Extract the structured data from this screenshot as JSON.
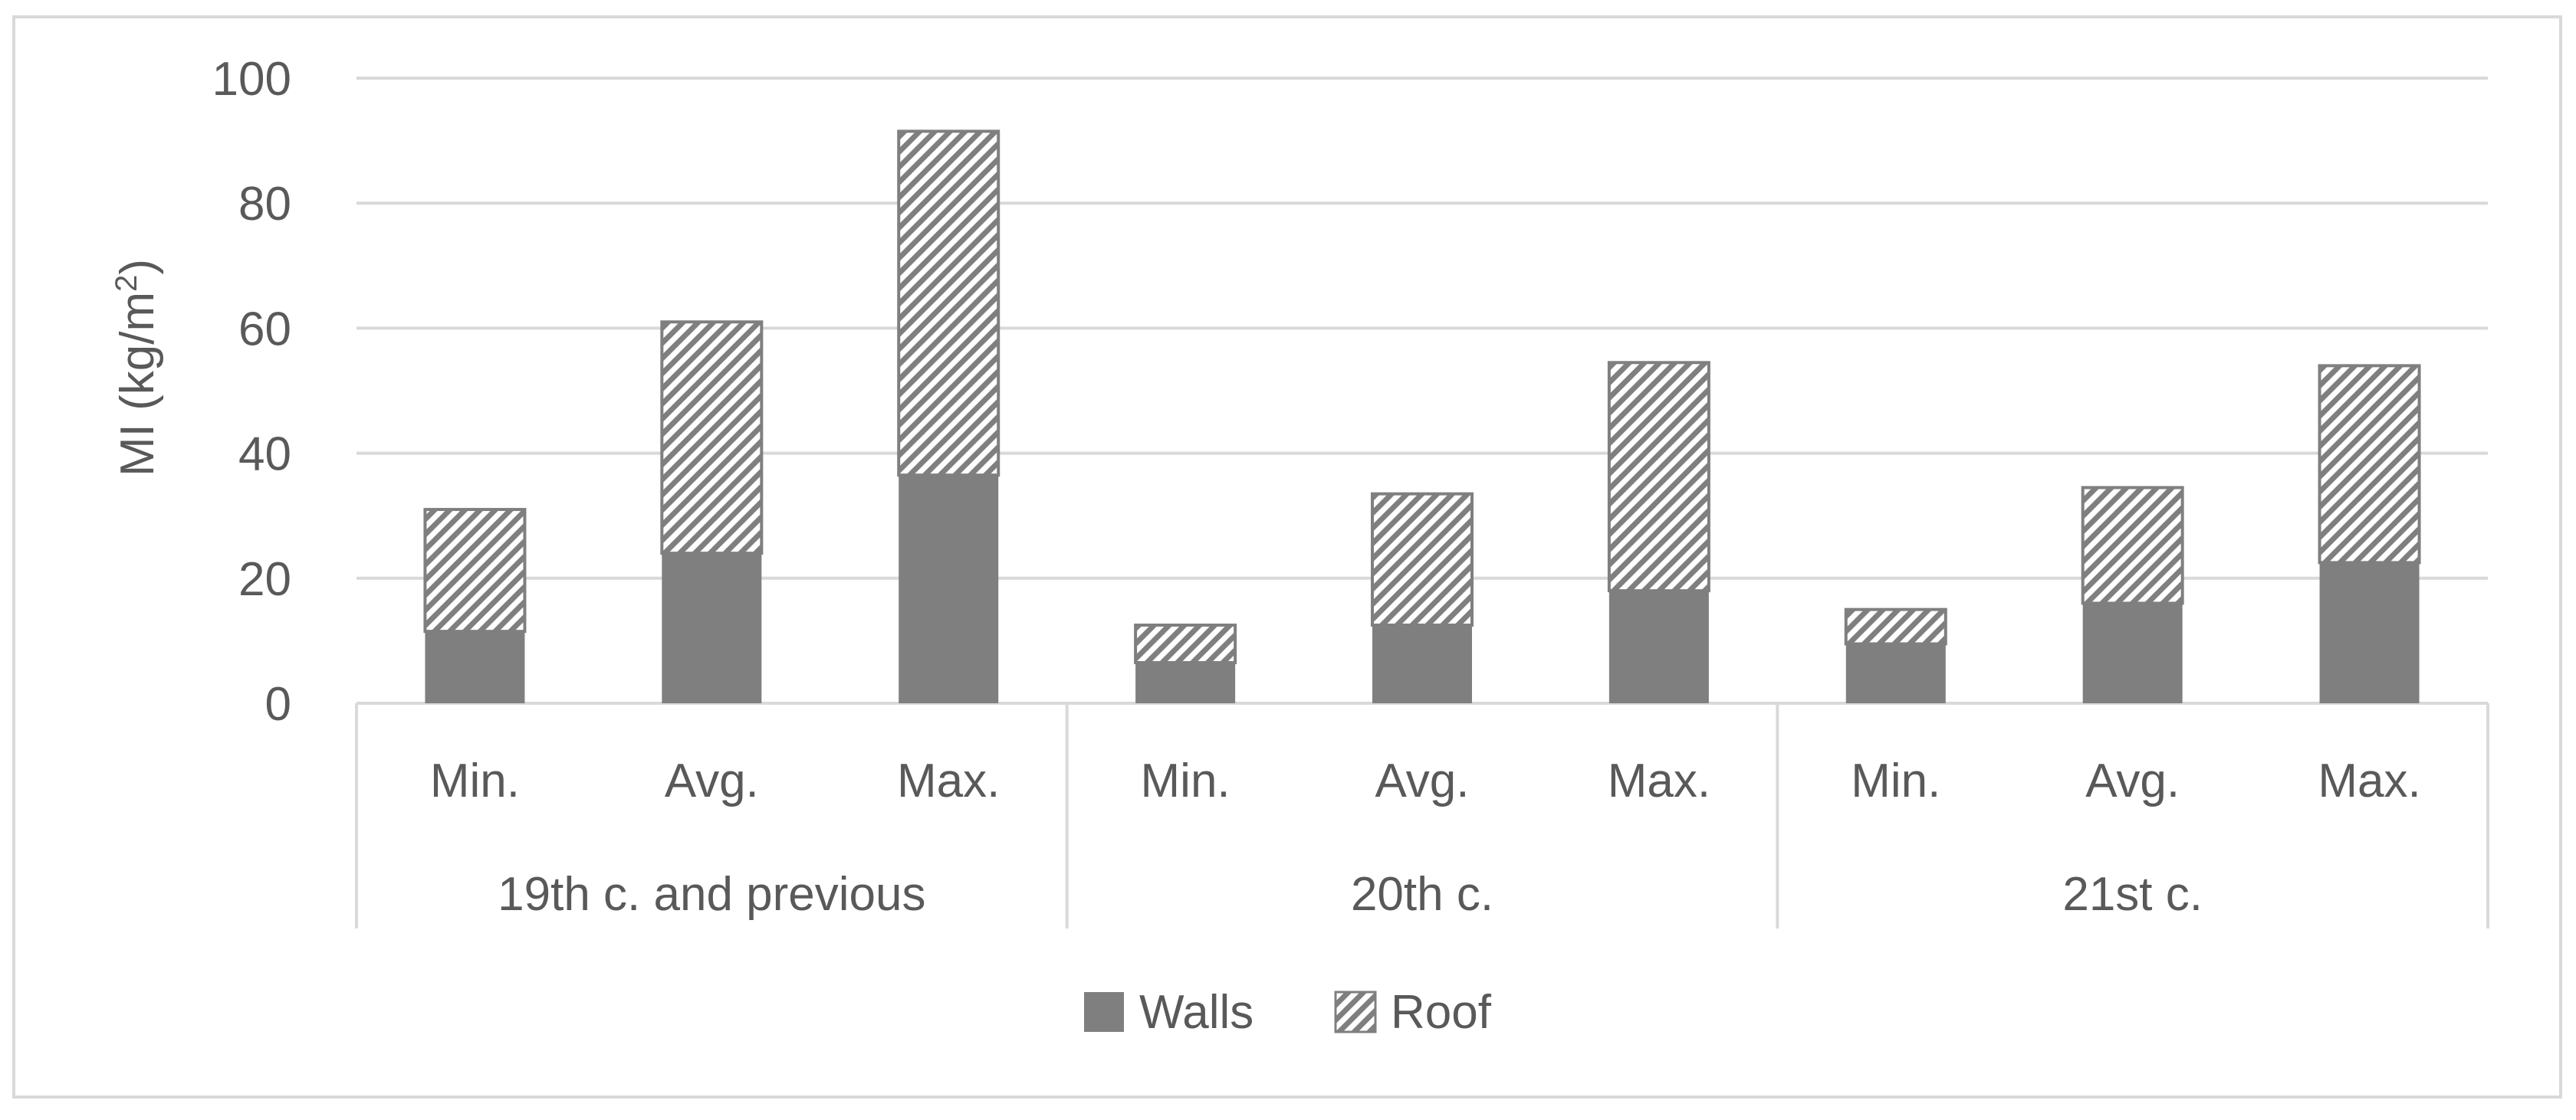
{
  "chart_data": {
    "type": "bar",
    "stacked": true,
    "title": "",
    "ylabel": "MI (kg/m",
    "ylabel_superscript": "2",
    "ylabel_suffix": ")",
    "xlabel": "",
    "ylim": [
      0,
      100
    ],
    "yticks": [
      "0",
      "20",
      "40",
      "60",
      "80",
      "100"
    ],
    "grid": true,
    "legend_position": "bottom",
    "groups": [
      {
        "label": "19th c. and previous",
        "categories": [
          "Min.",
          "Avg.",
          "Max."
        ]
      },
      {
        "label": "20th c.",
        "categories": [
          "Min.",
          "Avg.",
          "Max."
        ]
      },
      {
        "label": "21st c.",
        "categories": [
          "Min.",
          "Avg.",
          "Max."
        ]
      }
    ],
    "series": [
      {
        "name": "Walls",
        "color": "#7f7f7f",
        "pattern": "solid",
        "values": [
          11.5,
          24,
          36.5,
          6.5,
          12.5,
          18,
          9.5,
          16,
          22.5
        ]
      },
      {
        "name": "Roof",
        "color": "#7f7f7f",
        "pattern": "diagonal-hatch",
        "values": [
          19.5,
          37,
          55,
          6,
          21,
          36.5,
          5.5,
          18.5,
          31.5
        ]
      }
    ],
    "colors": {
      "axis": "#d9d9d9",
      "grid": "#d9d9d9",
      "text": "#595959",
      "bar": "#7f7f7f",
      "frame": "#d9d9d9"
    }
  }
}
